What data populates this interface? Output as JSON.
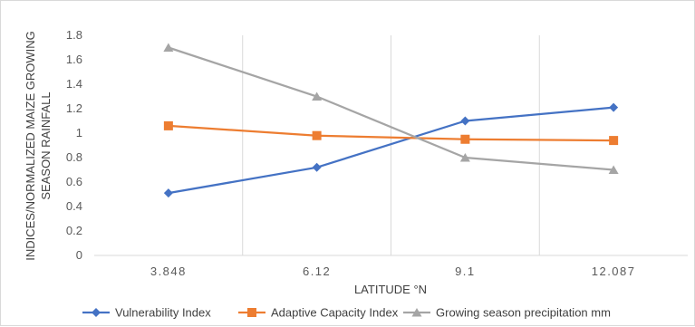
{
  "chart_data": {
    "type": "line",
    "title": "",
    "xlabel": "LATITUDE °N",
    "ylabel_lines": [
      "INDICES/NORMALIZED MAIZE GROWING",
      "SEASON RAINFALL"
    ],
    "categories": [
      "3.848",
      "6.12",
      "9.1",
      "12.087"
    ],
    "ylim": [
      0,
      1.8
    ],
    "yticks": [
      "0",
      "0.2",
      "0.4",
      "0.6",
      "0.8",
      "1",
      "1.2",
      "1.4",
      "1.6",
      "1.8"
    ],
    "grid": "vertical",
    "legend_position": "bottom",
    "series": [
      {
        "name": "Vulnerability Index",
        "values": [
          0.51,
          0.72,
          1.1,
          1.21
        ],
        "color": "#4472c4",
        "marker": "diamond"
      },
      {
        "name": "Adaptive Capacity Index",
        "values": [
          1.06,
          0.98,
          0.95,
          0.94
        ],
        "color": "#ed7d31",
        "marker": "square"
      },
      {
        "name": "Growing season precipitation mm",
        "values": [
          1.7,
          1.3,
          0.8,
          0.7
        ],
        "color": "#a5a5a5",
        "marker": "triangle"
      }
    ]
  }
}
